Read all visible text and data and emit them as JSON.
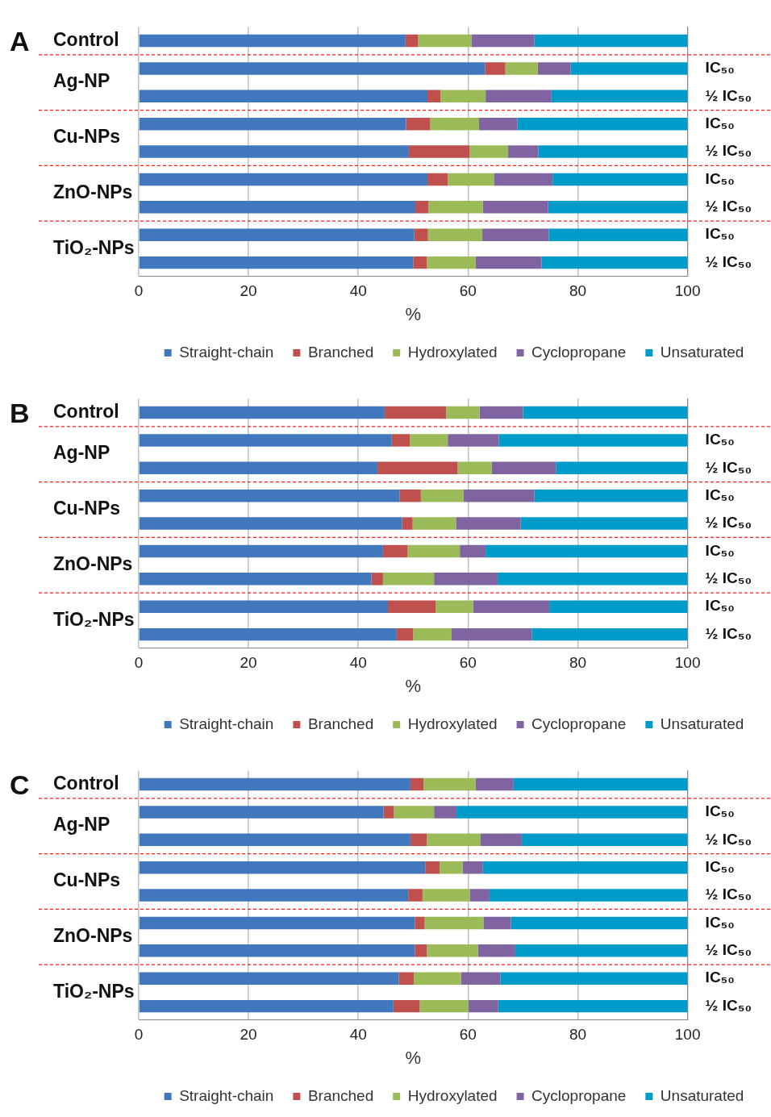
{
  "chart_data": [
    {
      "type": "bar",
      "title": "A",
      "orientation": "horizontal",
      "stacked": true,
      "xlabel": "%",
      "xlim": [
        0,
        100
      ],
      "xticks": [
        0,
        20,
        40,
        60,
        80,
        100
      ],
      "grid": "x",
      "legend": "bottom",
      "categories": [
        null,
        "IC₅₀",
        "½ IC₅₀",
        "IC₅₀",
        "½ IC₅₀",
        "IC₅₀",
        "½ IC₅₀",
        "IC₅₀",
        "½ IC₅₀"
      ],
      "annotations": [
        "Control",
        "Ag-NP",
        "Cu-NPs",
        "ZnO-NPs",
        "TiO₂-NPs"
      ],
      "series": [
        {
          "name": "Straight-chain",
          "color": "#4077bd",
          "values": [
            48.6,
            63.1,
            52.6,
            48.7,
            49.2,
            52.6,
            50.4,
            50.2,
            50.0
          ]
        },
        {
          "name": "Branched",
          "color": "#c0504d",
          "values": [
            2.3,
            3.7,
            2.4,
            4.4,
            11.1,
            3.7,
            2.4,
            2.5,
            2.5
          ]
        },
        {
          "name": "Hydroxylated",
          "color": "#9bbb59",
          "values": [
            9.7,
            5.9,
            8.2,
            8.9,
            7.0,
            8.4,
            9.9,
            9.9,
            8.9
          ]
        },
        {
          "name": "Cyclopropane",
          "color": "#8064a2",
          "values": [
            11.5,
            6.0,
            12.0,
            7.0,
            5.5,
            10.7,
            11.9,
            12.1,
            12.0
          ]
        },
        {
          "name": "Unsaturated",
          "color": "#009cc9",
          "values": [
            27.9,
            21.3,
            24.8,
            31.0,
            27.2,
            24.6,
            25.4,
            25.3,
            26.6
          ]
        }
      ]
    },
    {
      "type": "bar",
      "title": "B",
      "orientation": "horizontal",
      "stacked": true,
      "xlabel": "%",
      "xlim": [
        0,
        100
      ],
      "xticks": [
        0,
        20,
        40,
        60,
        80,
        100
      ],
      "grid": "x",
      "legend": "bottom",
      "categories": [
        null,
        "IC₅₀",
        "½ IC₅₀",
        "IC₅₀",
        "½ IC₅₀",
        "IC₅₀",
        "½ IC₅₀",
        "IC₅₀",
        "½ IC₅₀"
      ],
      "annotations": [
        "Control",
        "Ag-NP",
        "Cu-NPs",
        "ZnO-NPs",
        "TiO₂-NPs"
      ],
      "series": [
        {
          "name": "Straight-chain",
          "color": "#4077bd",
          "values": [
            44.8,
            46.1,
            43.5,
            47.5,
            48.0,
            44.5,
            42.4,
            45.4,
            47.0
          ]
        },
        {
          "name": "Branched",
          "color": "#c0504d",
          "values": [
            11.2,
            3.3,
            14.6,
            3.9,
            1.9,
            4.5,
            2.1,
            8.7,
            3.0
          ]
        },
        {
          "name": "Hydroxylated",
          "color": "#9bbb59",
          "values": [
            6.1,
            6.9,
            6.2,
            7.8,
            7.9,
            9.5,
            9.3,
            6.8,
            7.0
          ]
        },
        {
          "name": "Cyclopropane",
          "color": "#8064a2",
          "values": [
            7.9,
            9.3,
            11.7,
            12.9,
            11.8,
            4.7,
            11.6,
            13.9,
            14.6
          ]
        },
        {
          "name": "Unsaturated",
          "color": "#009cc9",
          "values": [
            30.0,
            34.4,
            24.0,
            27.9,
            30.4,
            36.8,
            34.6,
            25.2,
            28.4
          ]
        }
      ]
    },
    {
      "type": "bar",
      "title": "C",
      "orientation": "horizontal",
      "stacked": true,
      "xlabel": "%",
      "xlim": [
        0,
        100
      ],
      "xticks": [
        0,
        20,
        40,
        60,
        80,
        100
      ],
      "grid": "x",
      "legend": "bottom",
      "categories": [
        null,
        "IC₅₀",
        "½ IC₅₀",
        "IC₅₀",
        "½ IC₅₀",
        "IC₅₀",
        "½ IC₅₀",
        "IC₅₀",
        "½ IC₅₀"
      ],
      "annotations": [
        "Control",
        "Ag-NP",
        "Cu-NPs",
        "ZnO-NPs",
        "TiO₂-NPs"
      ],
      "series": [
        {
          "name": "Straight-chain",
          "color": "#4077bd",
          "values": [
            49.5,
            44.6,
            49.5,
            52.2,
            49.1,
            50.3,
            50.3,
            47.4,
            46.4
          ]
        },
        {
          "name": "Branched",
          "color": "#c0504d",
          "values": [
            2.4,
            1.9,
            3.0,
            2.6,
            2.6,
            1.8,
            2.2,
            2.7,
            4.8
          ]
        },
        {
          "name": "Hydroxylated",
          "color": "#9bbb59",
          "values": [
            9.5,
            7.3,
            9.8,
            4.2,
            8.6,
            10.7,
            9.3,
            8.6,
            8.9
          ]
        },
        {
          "name": "Cyclopropane",
          "color": "#8064a2",
          "values": [
            6.9,
            4.1,
            7.5,
            3.7,
            3.6,
            5.0,
            6.8,
            7.2,
            5.4
          ]
        },
        {
          "name": "Unsaturated",
          "color": "#009cc9",
          "values": [
            31.7,
            42.1,
            30.2,
            37.3,
            36.1,
            32.2,
            31.4,
            34.1,
            34.5
          ]
        }
      ]
    }
  ]
}
